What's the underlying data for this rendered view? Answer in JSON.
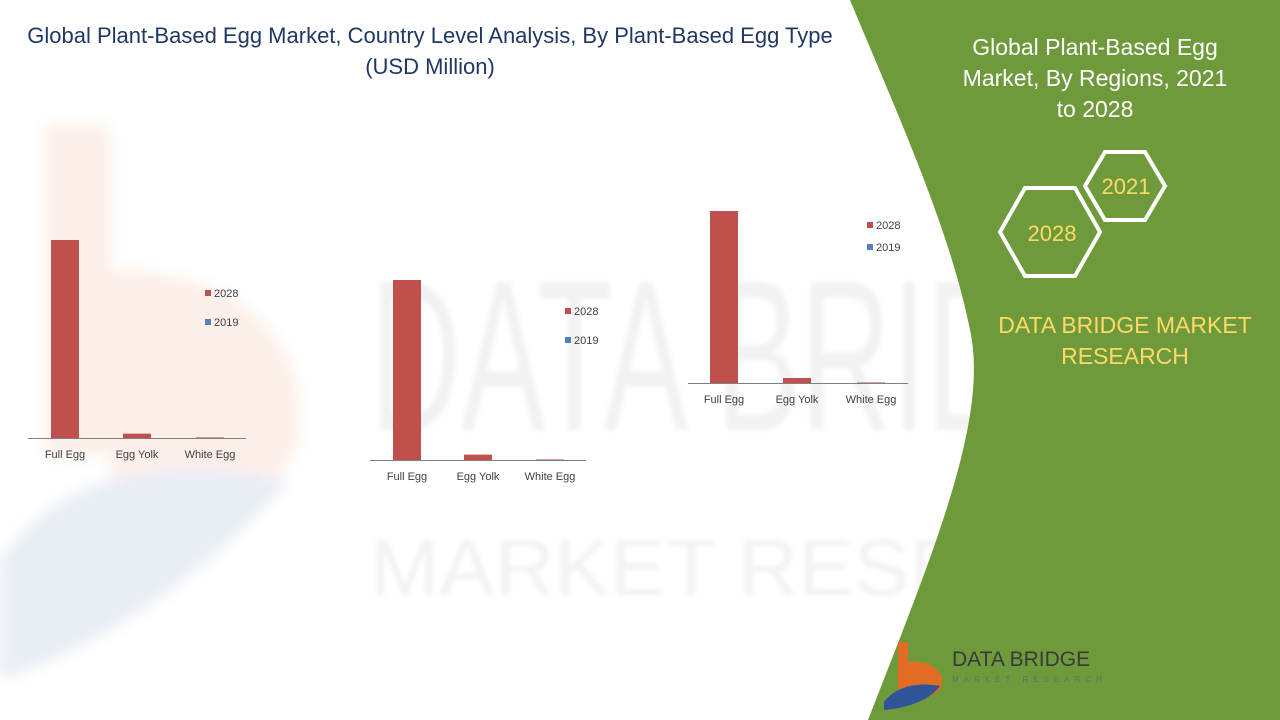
{
  "header": {
    "title": "Global Plant-Based Egg Market, Country Level Analysis, By Plant-Based Egg Type (USD Million)"
  },
  "side_panel": {
    "title": "Global Plant-Based Egg Market, By Regions, 2021 to 2028",
    "hex_near": "2021",
    "hex_far": "2028",
    "brand": "DATA BRIDGE MARKET RESEARCH",
    "logo_name": "DATA BRIDGE",
    "logo_sub": "MARKET RESEARCH",
    "watermark_word_1": "DATA BRIDGE",
    "watermark_word_2": "MARKET RESEARCH"
  },
  "colors": {
    "series_2028": "#c0504d",
    "series_2019": "#4f81bd",
    "panel_green": "#6f9a3c",
    "brand_yellow": "#ffd966",
    "title_blue": "#1f3864"
  },
  "chart_data": [
    {
      "type": "bar",
      "categories": [
        "Full Egg",
        "Egg Yolk",
        "White Egg"
      ],
      "series": [
        {
          "name": "2028",
          "values": [
            100,
            2.2,
            0.3
          ]
        },
        {
          "name": "2019",
          "values": [
            0,
            0,
            0
          ]
        }
      ],
      "ylim": [
        0,
        100
      ],
      "legend": "right",
      "grid": false
    },
    {
      "type": "bar",
      "categories": [
        "Full Egg",
        "Egg Yolk",
        "White Egg"
      ],
      "series": [
        {
          "name": "2028",
          "values": [
            100,
            3,
            0.3
          ]
        },
        {
          "name": "2019",
          "values": [
            0,
            0,
            0
          ]
        }
      ],
      "ylim": [
        0,
        100
      ],
      "legend": "right",
      "grid": false
    },
    {
      "type": "bar",
      "categories": [
        "Full Egg",
        "Egg Yolk",
        "White Egg"
      ],
      "series": [
        {
          "name": "2028",
          "values": [
            100,
            2.9,
            0.3
          ]
        },
        {
          "name": "2019",
          "values": [
            0,
            0,
            0
          ]
        }
      ],
      "ylim": [
        0,
        100
      ],
      "legend": "right",
      "grid": false
    }
  ]
}
